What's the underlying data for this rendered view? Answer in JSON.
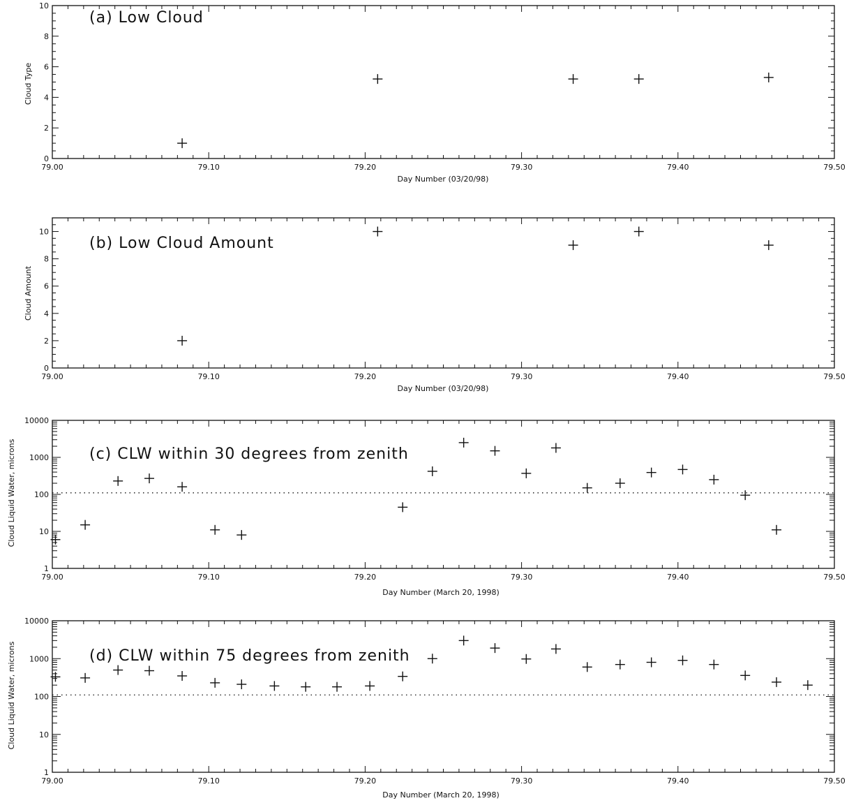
{
  "chart_data": [
    {
      "id": "a",
      "type": "scatter",
      "title": "(a) Low Cloud",
      "xlabel": "Day Number (03/20/98)",
      "ylabel": "Cloud Type",
      "xlim": [
        79.0,
        79.5
      ],
      "ylim": [
        0,
        10
      ],
      "yscale": "linear",
      "xticks": [
        "79.00",
        "79.10",
        "79.20",
        "79.30",
        "79.40",
        "79.50"
      ],
      "yticks": [
        "0",
        "2",
        "4",
        "6",
        "8",
        "10"
      ],
      "series": [
        {
          "marker": "+",
          "x": [
            79.083,
            79.208,
            79.333,
            79.375,
            79.458
          ],
          "y": [
            1,
            5.2,
            5.2,
            5.2,
            5.3
          ]
        }
      ]
    },
    {
      "id": "b",
      "type": "scatter",
      "title": "(b) Low Cloud Amount",
      "xlabel": "Day Number (03/20/98)",
      "ylabel": "Cloud Amount",
      "xlim": [
        79.0,
        79.5
      ],
      "ylim": [
        0,
        11
      ],
      "yscale": "linear",
      "xticks": [
        "79.00",
        "79.10",
        "79.20",
        "79.30",
        "79.40",
        "79.50"
      ],
      "yticks": [
        "0",
        "2",
        "4",
        "6",
        "8",
        "10"
      ],
      "series": [
        {
          "marker": "+",
          "x": [
            79.083,
            79.208,
            79.333,
            79.375,
            79.458
          ],
          "y": [
            2,
            10,
            9,
            10,
            9
          ]
        }
      ]
    },
    {
      "id": "c",
      "type": "scatter",
      "title": "(c) CLW within 30 degrees from zenith",
      "xlabel": "Day Number (March 20, 1998)",
      "ylabel": "Cloud Liquid Water, microns",
      "xlim": [
        79.0,
        79.5
      ],
      "ylim": [
        1,
        10000
      ],
      "yscale": "log",
      "xticks": [
        "79.00",
        "79.10",
        "79.20",
        "79.30",
        "79.40",
        "79.50"
      ],
      "yticks": [
        "1",
        "10",
        "100",
        "1000",
        "10000"
      ],
      "reference_line": {
        "y": 110,
        "style": "dotted"
      },
      "series": [
        {
          "marker": "+",
          "x": [
            79.002,
            79.021,
            79.042,
            79.062,
            79.083,
            79.104,
            79.121,
            79.224,
            79.243,
            79.263,
            79.283,
            79.303,
            79.322,
            79.342,
            79.363,
            79.383,
            79.403,
            79.423,
            79.443,
            79.463
          ],
          "y": [
            6,
            15,
            230,
            270,
            160,
            11,
            8,
            45,
            420,
            2500,
            1500,
            370,
            1800,
            150,
            200,
            390,
            470,
            250,
            95,
            11
          ]
        }
      ]
    },
    {
      "id": "d",
      "type": "scatter",
      "title": "(d) CLW within 75 degrees from zenith",
      "xlabel": "Day Number (March 20, 1998)",
      "ylabel": "Cloud Liquid Water, microns",
      "xlim": [
        79.0,
        79.5
      ],
      "ylim": [
        1,
        10000
      ],
      "yscale": "log",
      "xticks": [
        "79.00",
        "79.10",
        "79.20",
        "79.30",
        "79.40",
        "79.50"
      ],
      "yticks": [
        "1",
        "10",
        "100",
        "1000",
        "10000"
      ],
      "reference_line": {
        "y": 110,
        "style": "dotted"
      },
      "series": [
        {
          "marker": "+",
          "x": [
            79.002,
            79.021,
            79.042,
            79.062,
            79.083,
            79.104,
            79.121,
            79.142,
            79.162,
            79.182,
            79.203,
            79.224,
            79.243,
            79.263,
            79.283,
            79.303,
            79.322,
            79.342,
            79.363,
            79.383,
            79.403,
            79.423,
            79.443,
            79.463,
            79.483
          ],
          "y": [
            330,
            310,
            500,
            480,
            350,
            230,
            210,
            190,
            180,
            180,
            190,
            340,
            1000,
            3000,
            1900,
            980,
            1800,
            600,
            700,
            800,
            900,
            700,
            360,
            240,
            200
          ]
        }
      ]
    }
  ]
}
